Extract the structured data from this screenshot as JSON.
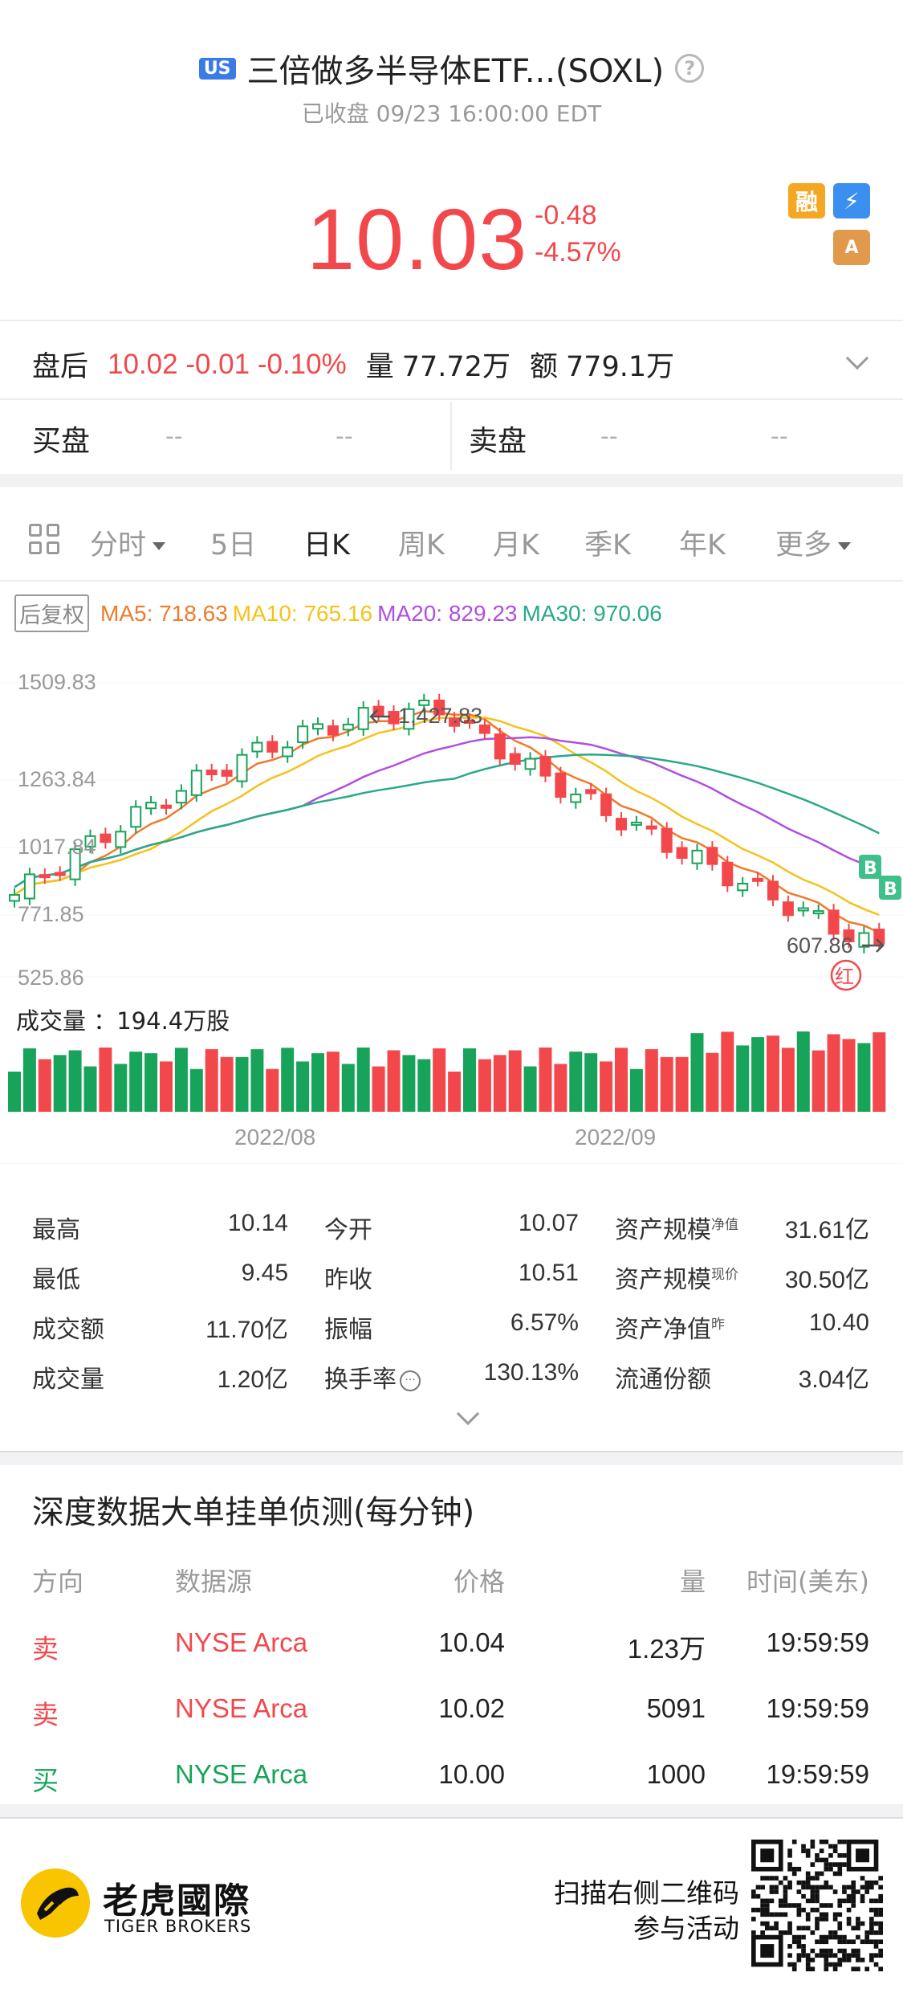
{
  "header": {
    "market_badge": "US",
    "title": "三倍做多半导体ETF...(SOXL)",
    "status": "已收盘 09/23 16:00:00 EDT"
  },
  "quote": {
    "price": "10.03",
    "change": "-0.48",
    "change_pct": "-4.57%",
    "badge_margin": "融",
    "badge_lightning": "⚡",
    "badge_stack": "A"
  },
  "after_hours": {
    "label": "盘后",
    "value": "10.02 -0.01 -0.10%",
    "volume_label": "量",
    "volume": "77.72万",
    "amount_label": "额",
    "amount": "779.1万"
  },
  "order_book": {
    "bid_label": "买盘",
    "ask_label": "卖盘",
    "bid_price": "--",
    "bid_size": "--",
    "ask_price": "--",
    "ask_size": "--"
  },
  "tabs": [
    {
      "label": "分时"
    },
    {
      "label": "5日"
    },
    {
      "label": "日K"
    },
    {
      "label": "周K"
    },
    {
      "label": "月K"
    },
    {
      "label": "季K"
    },
    {
      "label": "年K"
    },
    {
      "label": "更多"
    }
  ],
  "ma": {
    "adjust_label": "后复权",
    "ma5": "MA5: 718.63",
    "ma10": "MA10: 765.16",
    "ma20": "MA20: 829.23",
    "ma30": "MA30: 970.06",
    "colors": {
      "ma5": "#f07a2b",
      "ma10": "#f5c21b",
      "ma20": "#b04fe0",
      "ma30": "#2aa98a",
      "up": "#18a35a",
      "down": "#f2484c"
    }
  },
  "chart": {
    "y_labels": [
      "1509.83",
      "1263.84",
      "1017.84",
      "771.85",
      "525.86"
    ],
    "high_marker": "1,427.83",
    "low_marker": "607.86",
    "red_marker": "红",
    "b_marker": "B",
    "volume_label": "成交量 ：194.4万股",
    "x_labels": [
      "2022/08",
      "2022/09"
    ]
  },
  "chart_data": {
    "type": "candlestick",
    "ylim": [
      525.86,
      1509.83
    ],
    "ma_lines": [
      "MA5",
      "MA10",
      "MA20",
      "MA30"
    ]
  },
  "stats": [
    {
      "label": "最高",
      "value": "10.14"
    },
    {
      "label": "今开",
      "value": "10.07"
    },
    {
      "label": "资产规模",
      "sup": "净值",
      "value": "31.61亿"
    },
    {
      "label": "最低",
      "value": "9.45"
    },
    {
      "label": "昨收",
      "value": "10.51"
    },
    {
      "label": "资产规模",
      "sup": "现价",
      "value": "30.50亿"
    },
    {
      "label": "成交额",
      "value": "11.70亿"
    },
    {
      "label": "振幅",
      "value": "6.57%"
    },
    {
      "label": "资产净值",
      "sup": "昨",
      "value": "10.40"
    },
    {
      "label": "成交量",
      "value": "1.20亿"
    },
    {
      "label": "换手率",
      "value": "130.13%"
    },
    {
      "label": "流通份额",
      "value": "3.04亿"
    }
  ],
  "depth": {
    "title": "深度数据大单挂单侦测(每分钟)",
    "headers": {
      "side": "方向",
      "source": "数据源",
      "price": "价格",
      "qty": "量",
      "time": "时间(美东)"
    },
    "rows": [
      {
        "side": "卖",
        "source": "NYSE Arca",
        "price": "10.04",
        "qty": "1.23万",
        "time": "19:59:59"
      },
      {
        "side": "卖",
        "source": "NYSE Arca",
        "price": "10.02",
        "qty": "5091",
        "time": "19:59:59"
      },
      {
        "side": "买",
        "source": "NYSE Arca",
        "price": "10.00",
        "qty": "1000",
        "time": "19:59:59"
      }
    ]
  },
  "footer": {
    "brand_cn": "老虎國際",
    "brand_en": "TIGER BROKERS",
    "scan_line1": "扫描右侧二维码",
    "scan_line2": "参与活动"
  }
}
